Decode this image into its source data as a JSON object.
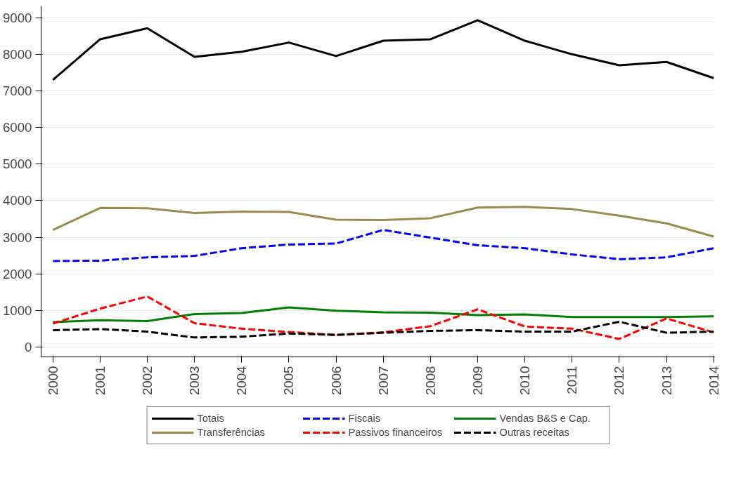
{
  "chart_data": {
    "type": "line",
    "x": [
      2000,
      2001,
      2002,
      2003,
      2004,
      2005,
      2006,
      2007,
      2008,
      2009,
      2010,
      2011,
      2012,
      2013,
      2014
    ],
    "xlim": [
      1999.75,
      2014.02
    ],
    "xticks": [
      2000,
      2001,
      2002,
      2003,
      2004,
      2005,
      2006,
      2007,
      2008,
      2009,
      2010,
      2011,
      2012,
      2013,
      2014
    ],
    "ylim": [
      -270,
      9320
    ],
    "yticks": [
      0,
      1000,
      2000,
      3000,
      4000,
      5000,
      6000,
      7000,
      8000,
      9000
    ],
    "grid": "y",
    "legend": "bottom",
    "series": [
      {
        "name": "Totais",
        "color": "#000000",
        "line_style": "solid",
        "values": [
          7300,
          8410,
          8710,
          7930,
          8070,
          8320,
          7950,
          8370,
          8410,
          8930,
          8370,
          8000,
          7700,
          7790,
          7350
        ]
      },
      {
        "name": "Fiscais",
        "color": "#0000ff",
        "line_style": "dashed",
        "values": [
          2350,
          2360,
          2450,
          2490,
          2700,
          2800,
          2830,
          3200,
          2990,
          2780,
          2700,
          2530,
          2400,
          2450,
          2700
        ]
      },
      {
        "name": "Vendas B&S e Cap.",
        "color": "#008000",
        "line_style": "solid",
        "values": [
          680,
          730,
          710,
          900,
          930,
          1080,
          990,
          950,
          940,
          870,
          890,
          820,
          820,
          820,
          840
        ]
      },
      {
        "name": "Transferências",
        "color": "#9c8a4a",
        "line_style": "solid",
        "values": [
          3200,
          3800,
          3790,
          3660,
          3700,
          3690,
          3480,
          3470,
          3520,
          3810,
          3830,
          3770,
          3590,
          3380,
          3020
        ]
      },
      {
        "name": "Passivos financeiros",
        "color": "#ff0000",
        "line_style": "dashed",
        "values": [
          640,
          1050,
          1380,
          650,
          500,
          410,
          330,
          400,
          570,
          1030,
          560,
          500,
          220,
          780,
          400
        ]
      },
      {
        "name": "Outras receitas",
        "color": "#000000",
        "line_style": "dashed",
        "values": [
          460,
          490,
          420,
          260,
          280,
          370,
          330,
          390,
          440,
          460,
          420,
          420,
          690,
          390,
          420
        ]
      }
    ]
  }
}
